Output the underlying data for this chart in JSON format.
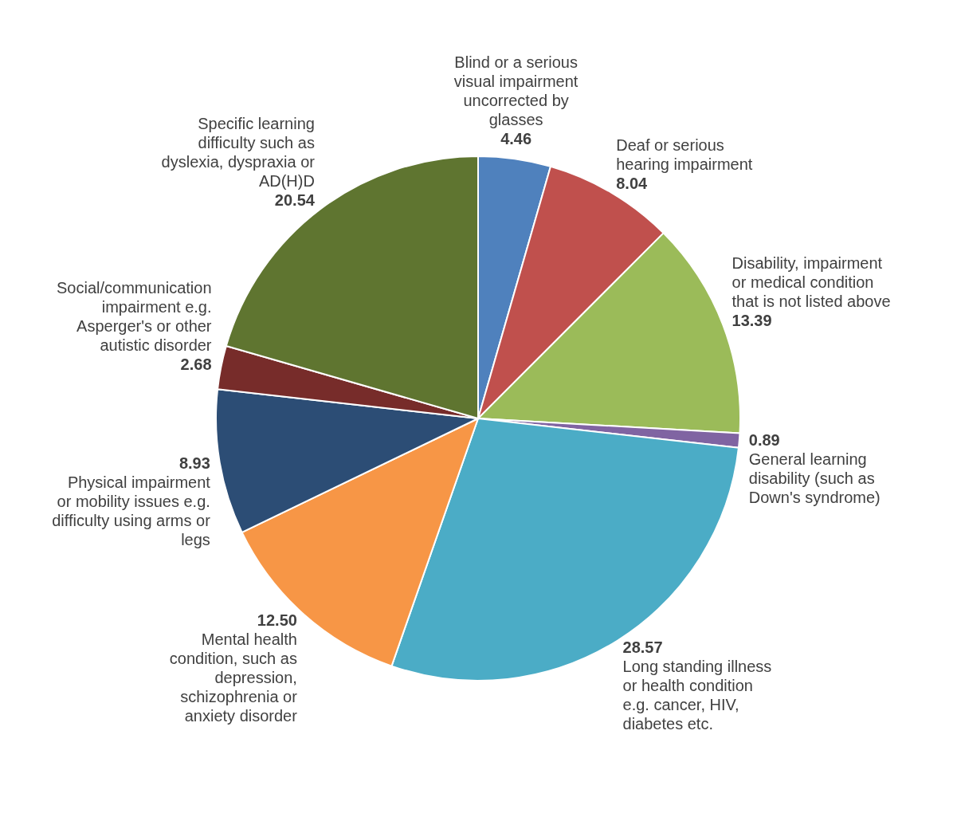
{
  "chart_data": {
    "type": "pie",
    "categories": [
      "Blind or a serious visual impairment uncorrected by glasses",
      "Deaf or serious hearing impairment",
      "Disability, impairment or medical condition that is not listed above",
      "General learning disability (such as Down's syndrome)",
      "Long standing illness or health condition e.g. cancer, HIV, diabetes etc.",
      "Mental health condition, such as depression, schizophrenia or anxiety disorder",
      "Physical impairment or mobility issues e.g. difficulty using arms or legs",
      "Social/communication impairment e.g. Asperger's or other autistic disorder",
      "Specific learning difficulty such as dyslexia, dyspraxia or AD(H)D"
    ],
    "values": [
      4.46,
      8.04,
      13.39,
      0.89,
      28.57,
      12.5,
      8.93,
      2.68,
      20.54
    ],
    "colors": [
      "#4f81bd",
      "#c0504d",
      "#9bbb59",
      "#8064a2",
      "#4bacc6",
      "#f79646",
      "#2c4d75",
      "#772c2a",
      "#5f7530"
    ],
    "value_labels": [
      "4.46",
      "8.04",
      "13.39",
      "0.89",
      "28.57",
      "12.50",
      "8.93",
      "2.68",
      "20.54"
    ],
    "data_labels": true,
    "legend": false
  }
}
